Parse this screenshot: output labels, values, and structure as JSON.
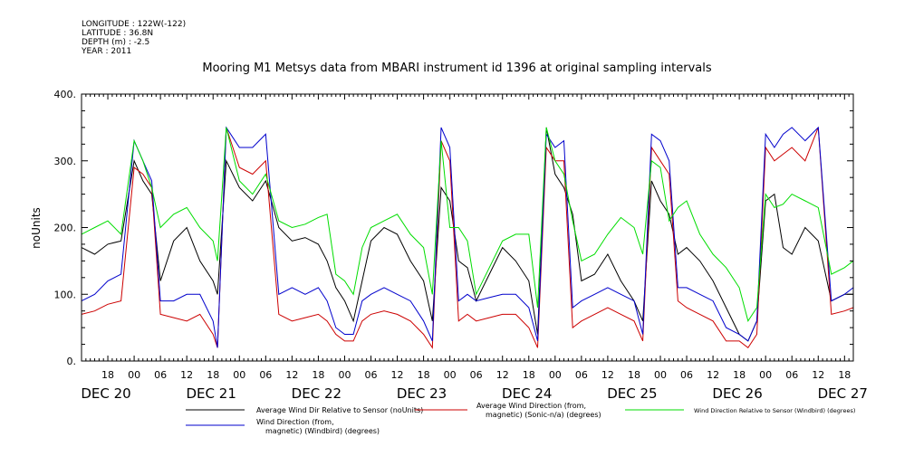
{
  "header": {
    "meta_lines": [
      "LONGITUDE : 122W(-122)",
      "LATITUDE : 36.8N",
      "DEPTH (m) : -2.5",
      "YEAR : 2011"
    ],
    "title": "Mooring M1 Metsys data from MBARI instrument id 1396 at original sampling intervals"
  },
  "chart_data": {
    "type": "line",
    "title": "Mooring M1 Metsys data from MBARI instrument id 1396 at original sampling intervals",
    "ylabel": "noUnits",
    "xlabel": "",
    "ylim": [
      0,
      400
    ],
    "yticks": [
      0,
      100,
      200,
      300,
      400
    ],
    "ytick_labels": [
      "0.",
      "100.",
      "200.",
      "300.",
      "400."
    ],
    "xlim": [
      0,
      176
    ],
    "hour_ticks": [
      {
        "x": 6,
        "label": "18"
      },
      {
        "x": 12,
        "label": "00"
      },
      {
        "x": 18,
        "label": "06"
      },
      {
        "x": 24,
        "label": "12"
      },
      {
        "x": 30,
        "label": "18"
      },
      {
        "x": 36,
        "label": "00"
      },
      {
        "x": 42,
        "label": "06"
      },
      {
        "x": 48,
        "label": "12"
      },
      {
        "x": 54,
        "label": "18"
      },
      {
        "x": 60,
        "label": "00"
      },
      {
        "x": 66,
        "label": "06"
      },
      {
        "x": 72,
        "label": "12"
      },
      {
        "x": 78,
        "label": "18"
      },
      {
        "x": 84,
        "label": "00"
      },
      {
        "x": 90,
        "label": "06"
      },
      {
        "x": 96,
        "label": "12"
      },
      {
        "x": 102,
        "label": "18"
      },
      {
        "x": 108,
        "label": "00"
      },
      {
        "x": 114,
        "label": "06"
      },
      {
        "x": 120,
        "label": "12"
      },
      {
        "x": 126,
        "label": "18"
      },
      {
        "x": 132,
        "label": "00"
      },
      {
        "x": 138,
        "label": "06"
      },
      {
        "x": 144,
        "label": "12"
      },
      {
        "x": 150,
        "label": "18"
      },
      {
        "x": 156,
        "label": "00"
      },
      {
        "x": 162,
        "label": "06"
      },
      {
        "x": 168,
        "label": "12"
      },
      {
        "x": 174,
        "label": "18"
      }
    ],
    "date_labels": [
      {
        "x": 0,
        "label": "DEC 20"
      },
      {
        "x": 24,
        "label": "DEC 21"
      },
      {
        "x": 48,
        "label": "DEC 22"
      },
      {
        "x": 72,
        "label": "DEC 23"
      },
      {
        "x": 96,
        "label": "DEC 24"
      },
      {
        "x": 120,
        "label": "DEC 25"
      },
      {
        "x": 144,
        "label": "DEC 26"
      },
      {
        "x": 168,
        "label": "DEC 27"
      }
    ],
    "x": [
      0,
      3,
      6,
      9,
      12,
      14,
      16,
      18,
      21,
      24,
      27,
      30,
      31,
      33,
      36,
      39,
      42,
      45,
      48,
      51,
      54,
      56,
      58,
      60,
      62,
      64,
      66,
      69,
      72,
      75,
      78,
      80,
      82,
      84,
      86,
      88,
      90,
      93,
      96,
      99,
      102,
      104,
      106,
      108,
      110,
      112,
      114,
      117,
      120,
      123,
      126,
      128,
      130,
      132,
      134,
      136,
      138,
      141,
      144,
      147,
      150,
      152,
      154,
      156,
      158,
      160,
      162,
      165,
      168,
      171,
      174,
      176
    ],
    "series": [
      {
        "name": "Average Wind Dir Relative to Sensor (noUnits)",
        "color": "#000000",
        "values": [
          170,
          160,
          175,
          180,
          300,
          270,
          250,
          120,
          180,
          200,
          150,
          120,
          100,
          300,
          260,
          240,
          270,
          200,
          180,
          185,
          175,
          150,
          110,
          90,
          60,
          120,
          180,
          200,
          190,
          150,
          120,
          60,
          260,
          240,
          150,
          140,
          90,
          130,
          170,
          150,
          120,
          40,
          350,
          280,
          260,
          220,
          120,
          130,
          160,
          120,
          90,
          60,
          270,
          240,
          220,
          160,
          170,
          150,
          120,
          80,
          40,
          30,
          60,
          240,
          250,
          170,
          160,
          200,
          180,
          90,
          100,
          100
        ]
      },
      {
        "name": "Average Wind Direction (from, magnetic) (Sonic-n/a) (degrees)",
        "color": "#cc0000",
        "values": [
          70,
          75,
          85,
          90,
          290,
          280,
          260,
          70,
          65,
          60,
          70,
          40,
          20,
          350,
          290,
          280,
          300,
          70,
          60,
          65,
          70,
          60,
          40,
          30,
          30,
          60,
          70,
          75,
          70,
          60,
          40,
          20,
          330,
          300,
          60,
          70,
          60,
          65,
          70,
          70,
          50,
          20,
          320,
          300,
          300,
          50,
          60,
          70,
          80,
          70,
          60,
          30,
          320,
          300,
          280,
          90,
          80,
          70,
          60,
          30,
          30,
          20,
          40,
          320,
          300,
          310,
          320,
          300,
          350,
          70,
          75,
          80
        ]
      },
      {
        "name": "Wind Direction (from, magnetic) (Windbird) (degrees)",
        "color": "#0000cc",
        "values": [
          90,
          100,
          120,
          130,
          330,
          300,
          270,
          90,
          90,
          100,
          100,
          60,
          20,
          350,
          320,
          320,
          340,
          100,
          110,
          100,
          110,
          90,
          50,
          40,
          40,
          90,
          100,
          110,
          100,
          90,
          60,
          30,
          350,
          320,
          90,
          100,
          90,
          95,
          100,
          100,
          80,
          30,
          340,
          320,
          330,
          80,
          90,
          100,
          110,
          100,
          90,
          40,
          340,
          330,
          300,
          110,
          110,
          100,
          90,
          50,
          40,
          30,
          60,
          340,
          320,
          340,
          350,
          330,
          350,
          90,
          100,
          110
        ]
      },
      {
        "name": "Wind Direction Relative to Sensor (Windbird) (degrees)",
        "color": "#00dd00",
        "values": [
          190,
          200,
          210,
          190,
          330,
          300,
          260,
          200,
          220,
          230,
          200,
          180,
          150,
          350,
          270,
          250,
          280,
          210,
          200,
          205,
          215,
          220,
          130,
          120,
          100,
          170,
          200,
          210,
          220,
          190,
          170,
          100,
          330,
          200,
          200,
          180,
          100,
          140,
          180,
          190,
          190,
          80,
          350,
          300,
          280,
          210,
          150,
          160,
          190,
          215,
          200,
          160,
          300,
          290,
          210,
          230,
          240,
          190,
          160,
          140,
          110,
          60,
          80,
          250,
          230,
          235,
          250,
          240,
          230,
          130,
          140,
          150
        ]
      }
    ],
    "legend": [
      {
        "label_lines": [
          "Average Wind Dir Relative to Sensor (noUnits)"
        ],
        "color": "#000000"
      },
      {
        "label_lines": [
          "Average Wind Direction (from,",
          "magnetic) (Sonic-n/a) (degrees)"
        ],
        "color": "#cc0000"
      },
      {
        "label_lines": [
          "Wind Direction Relative to Sensor (Windbird) (degrees)"
        ],
        "color": "#00dd00"
      },
      {
        "label_lines": [
          "Wind Direction (from,",
          "magnetic) (Windbird) (degrees)"
        ],
        "color": "#0000cc"
      }
    ]
  }
}
